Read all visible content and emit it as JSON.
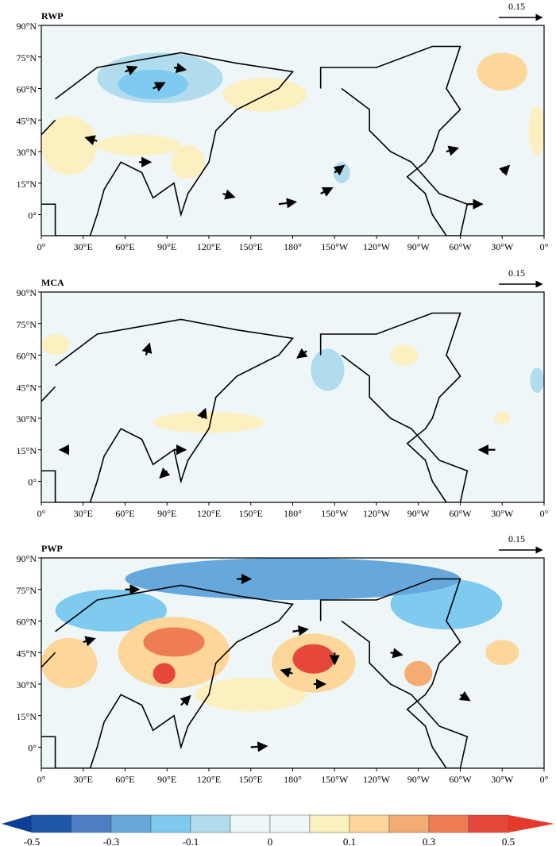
{
  "chart_data": {
    "type": "map",
    "lon_range": [
      0,
      360
    ],
    "lat_range": [
      -10,
      90
    ],
    "lat_ticks": [
      "90°N",
      "75°N",
      "60°N",
      "45°N",
      "30°N",
      "15°N",
      "0°"
    ],
    "lon_ticks": [
      "0°",
      "30°E",
      "60°E",
      "90°E",
      "120°E",
      "150°E",
      "180°",
      "150°W",
      "120°W",
      "90°W",
      "60°W",
      "30°W",
      "0°"
    ],
    "reference_vector": "0.15",
    "panels": [
      {
        "title": "RWP",
        "anomalies": [
          {
            "lon": 85,
            "lat": 65,
            "rx": 45,
            "ry": 12,
            "value": -0.1
          },
          {
            "lon": 70,
            "lat": 72,
            "rx": 60,
            "ry": 14,
            "value": -0.05
          },
          {
            "lon": 80,
            "lat": 62,
            "rx": 25,
            "ry": 7,
            "value": -0.2
          },
          {
            "lon": 160,
            "lat": 57,
            "rx": 30,
            "ry": 8,
            "value": 0.05
          },
          {
            "lon": 20,
            "lat": 33,
            "rx": 20,
            "ry": 14,
            "value": 0.05
          },
          {
            "lon": 70,
            "lat": 33,
            "rx": 30,
            "ry": 5,
            "value": 0.05
          },
          {
            "lon": 105,
            "lat": 25,
            "rx": 12,
            "ry": 8,
            "value": 0.05
          },
          {
            "lon": 215,
            "lat": 20,
            "rx": 6,
            "ry": 5,
            "value": -0.1
          },
          {
            "lon": 330,
            "lat": 68,
            "rx": 18,
            "ry": 9,
            "value": 0.1
          },
          {
            "lon": 355,
            "lat": 40,
            "rx": 6,
            "ry": 12,
            "value": 0.05
          }
        ],
        "vectors": [
          {
            "lon": 60,
            "lat": 68,
            "u": 1,
            "v": 0.4
          },
          {
            "lon": 80,
            "lat": 60,
            "u": 1,
            "v": 0.5
          },
          {
            "lon": 95,
            "lat": 70,
            "u": 1,
            "v": -0.2
          },
          {
            "lon": 40,
            "lat": 35,
            "u": -1,
            "v": 0.3
          },
          {
            "lon": 70,
            "lat": 25,
            "u": 1,
            "v": 0
          },
          {
            "lon": 130,
            "lat": 10,
            "u": 1,
            "v": -0.3
          },
          {
            "lon": 170,
            "lat": 5,
            "u": 1.5,
            "v": 0.2
          },
          {
            "lon": 200,
            "lat": 10,
            "u": 1,
            "v": 0.5
          },
          {
            "lon": 210,
            "lat": 20,
            "u": 0.8,
            "v": 0.6
          },
          {
            "lon": 305,
            "lat": 5,
            "u": 1.3,
            "v": 0
          },
          {
            "lon": 290,
            "lat": 30,
            "u": 1,
            "v": 0.3
          },
          {
            "lon": 330,
            "lat": 20,
            "u": 0.6,
            "v": 0.6
          }
        ]
      },
      {
        "title": "MCA",
        "anomalies": [
          {
            "lon": 190,
            "lat": 60,
            "rx": 35,
            "ry": 9,
            "value": -0.05
          },
          {
            "lon": 205,
            "lat": 53,
            "rx": 12,
            "ry": 10,
            "value": -0.1
          },
          {
            "lon": 25,
            "lat": 50,
            "rx": 20,
            "ry": 6,
            "value": -0.05
          },
          {
            "lon": 120,
            "lat": 68,
            "rx": 40,
            "ry": 5,
            "value": -0.05
          },
          {
            "lon": 120,
            "lat": 28,
            "rx": 40,
            "ry": 5,
            "value": 0.05
          },
          {
            "lon": 10,
            "lat": 65,
            "rx": 10,
            "ry": 5,
            "value": 0.05
          },
          {
            "lon": 260,
            "lat": 60,
            "rx": 10,
            "ry": 5,
            "value": 0.05
          },
          {
            "lon": 330,
            "lat": 30,
            "rx": 6,
            "ry": 3,
            "value": 0.05
          },
          {
            "lon": 355,
            "lat": 48,
            "rx": 5,
            "ry": 6,
            "value": -0.1
          }
        ],
        "vectors": [
          {
            "lon": 75,
            "lat": 60,
            "u": 0.3,
            "v": 1
          },
          {
            "lon": 190,
            "lat": 62,
            "u": -0.8,
            "v": -0.6
          },
          {
            "lon": 95,
            "lat": 15,
            "u": 1,
            "v": 0
          },
          {
            "lon": 90,
            "lat": 5,
            "u": -0.6,
            "v": -0.6
          },
          {
            "lon": 115,
            "lat": 30,
            "u": 0.3,
            "v": 0.8
          },
          {
            "lon": 325,
            "lat": 15,
            "u": -1.4,
            "v": 0
          },
          {
            "lon": 20,
            "lat": 15,
            "u": -0.8,
            "v": 0
          }
        ]
      },
      {
        "title": "PWP",
        "anomalies": [
          {
            "lon": 180,
            "lat": 80,
            "rx": 120,
            "ry": 10,
            "value": -0.3
          },
          {
            "lon": 290,
            "lat": 68,
            "rx": 40,
            "ry": 12,
            "value": -0.2
          },
          {
            "lon": 50,
            "lat": 65,
            "rx": 40,
            "ry": 10,
            "value": -0.15
          },
          {
            "lon": 95,
            "lat": 45,
            "rx": 40,
            "ry": 17,
            "value": 0.15
          },
          {
            "lon": 95,
            "lat": 50,
            "rx": 22,
            "ry": 7,
            "value": 0.3
          },
          {
            "lon": 88,
            "lat": 35,
            "rx": 8,
            "ry": 5,
            "value": 0.45
          },
          {
            "lon": 195,
            "lat": 40,
            "rx": 30,
            "ry": 14,
            "value": 0.15
          },
          {
            "lon": 195,
            "lat": 42,
            "rx": 15,
            "ry": 7,
            "value": 0.4
          },
          {
            "lon": 270,
            "lat": 35,
            "rx": 10,
            "ry": 6,
            "value": 0.25
          },
          {
            "lon": 20,
            "lat": 40,
            "rx": 20,
            "ry": 12,
            "value": 0.1
          },
          {
            "lon": 330,
            "lat": 45,
            "rx": 12,
            "ry": 6,
            "value": 0.1
          },
          {
            "lon": 150,
            "lat": 25,
            "rx": 40,
            "ry": 8,
            "value": 0.05
          }
        ],
        "vectors": [
          {
            "lon": 60,
            "lat": 75,
            "u": 1.2,
            "v": 0
          },
          {
            "lon": 140,
            "lat": 80,
            "u": 1.2,
            "v": 0
          },
          {
            "lon": 180,
            "lat": 55,
            "u": 1.3,
            "v": 0.2
          },
          {
            "lon": 180,
            "lat": 35,
            "u": -1,
            "v": 0.3
          },
          {
            "lon": 210,
            "lat": 45,
            "u": 0,
            "v": -1
          },
          {
            "lon": 195,
            "lat": 30,
            "u": 1,
            "v": 0
          },
          {
            "lon": 100,
            "lat": 20,
            "u": 0.8,
            "v": 0.8
          },
          {
            "lon": 150,
            "lat": 0,
            "u": 1.4,
            "v": 0.1
          },
          {
            "lon": 250,
            "lat": 45,
            "u": 1,
            "v": -0.2
          },
          {
            "lon": 300,
            "lat": 25,
            "u": 0.8,
            "v": -0.5
          },
          {
            "lon": 30,
            "lat": 50,
            "u": 1,
            "v": 0.3
          }
        ]
      }
    ],
    "colorbar": {
      "levels": [
        -0.5,
        -0.4,
        -0.3,
        -0.2,
        -0.1,
        -0.05,
        0,
        0.05,
        0.1,
        0.2,
        0.3,
        0.4,
        0.5
      ],
      "tick_labels": [
        "-0.5",
        "-0.3",
        "-0.1",
        "0",
        "0.1",
        "0.3",
        "0.5"
      ],
      "colors": [
        "#0a3f99",
        "#1f57a8",
        "#4f7fc2",
        "#66a8dc",
        "#7ecbef",
        "#b0dcee",
        "#eef6f8",
        "#eef6f8",
        "#fdf0c0",
        "#fdd699",
        "#f5ac72",
        "#ee7d54",
        "#e5483a",
        "#e5392c"
      ]
    },
    "land_color": "#000000"
  }
}
